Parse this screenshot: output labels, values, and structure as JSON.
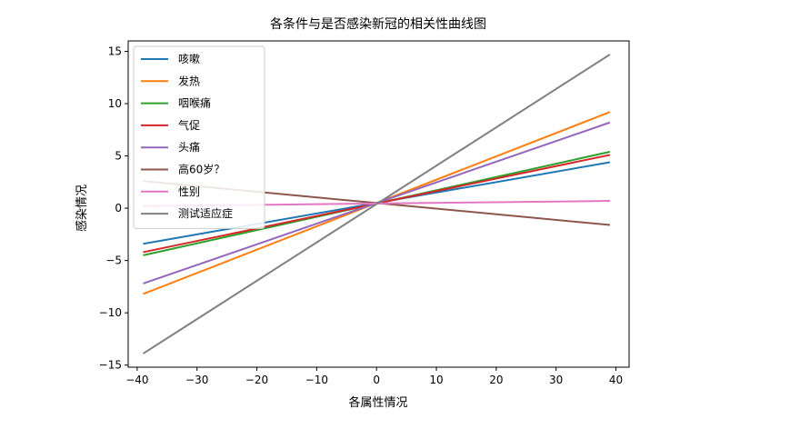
{
  "chart_data": {
    "type": "line",
    "title": "各条件与是否感染新冠的相关性曲线图",
    "xlabel": "各属性情况",
    "ylabel": "感染情况",
    "xlim": [
      -41.5,
      42.2
    ],
    "ylim": [
      -15.2,
      16.0
    ],
    "xticks": [
      -40,
      -30,
      -20,
      -10,
      0,
      10,
      20,
      30,
      40
    ],
    "yticks": [
      -15,
      -10,
      -5,
      0,
      5,
      10,
      15
    ],
    "xtick_labels": [
      "−40",
      "−30",
      "−20",
      "−10",
      "0",
      "10",
      "20",
      "30",
      "40"
    ],
    "ytick_labels": [
      "−15",
      "−10",
      "−5",
      "0",
      "5",
      "10",
      "15"
    ],
    "grid": false,
    "legend_position": "upper-left",
    "x": [
      -39,
      39
    ],
    "series": [
      {
        "name": "咳嗽",
        "color": "#1f77b4",
        "values": [
          -3.4,
          4.4
        ]
      },
      {
        "name": "发热",
        "color": "#ff7f0e",
        "values": [
          -8.2,
          9.2
        ]
      },
      {
        "name": "咽喉痛",
        "color": "#2ca02c",
        "values": [
          -4.5,
          5.4
        ]
      },
      {
        "name": "气促",
        "color": "#d62728",
        "values": [
          -4.2,
          5.1
        ]
      },
      {
        "name": "头痛",
        "color": "#9467bd",
        "values": [
          -7.2,
          8.2
        ]
      },
      {
        "name": "高60岁？",
        "color": "#8c564b",
        "values": [
          2.6,
          -1.6
        ]
      },
      {
        "name": "性别",
        "color": "#e377c2",
        "values": [
          0.2,
          0.7
        ]
      },
      {
        "name": "测试适应症",
        "color": "#7f7f7f",
        "values": [
          -13.9,
          14.7
        ]
      }
    ]
  }
}
